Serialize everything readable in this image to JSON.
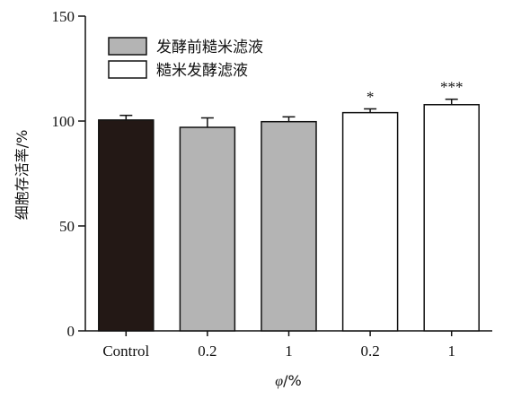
{
  "chart_data": {
    "type": "bar",
    "ylabel": "细胞存活率/%",
    "xlabel_var": "φ",
    "xlabel_unit": "/%",
    "ylim": [
      0,
      150
    ],
    "yticks": [
      0,
      50,
      100,
      150
    ],
    "categories": [
      "Control",
      "0.2",
      "1",
      "0.2",
      "1"
    ],
    "values": [
      100.5,
      97.0,
      99.7,
      104.0,
      107.8
    ],
    "errors": [
      2.2,
      4.5,
      2.3,
      1.8,
      2.6
    ],
    "bar_groups": [
      "control",
      "before",
      "before",
      "after",
      "after"
    ],
    "significance": [
      "",
      "",
      "",
      "*",
      "***"
    ],
    "legend": [
      {
        "label": "发酵前糙米滤液",
        "group": "before"
      },
      {
        "label": "糙米发酵滤液",
        "group": "after"
      }
    ],
    "colors": {
      "control": "#231815",
      "before": "#b4b4b4",
      "after": "#ffffff",
      "stroke": "#111111"
    },
    "grid": false,
    "legend_position": "top-left"
  }
}
